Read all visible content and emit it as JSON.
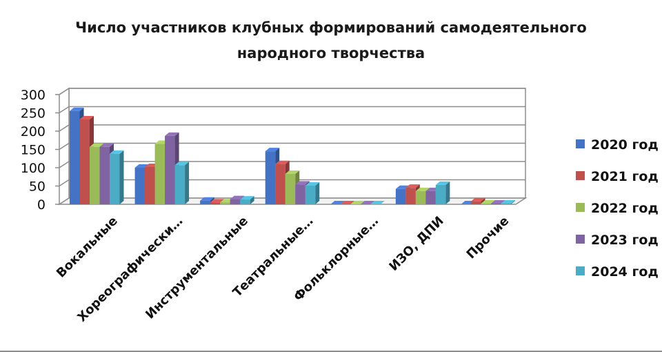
{
  "chart_data": {
    "type": "bar",
    "title_lines": [
      "Число участников клубных формирований самодеятельного",
      "народного творчества"
    ],
    "categories": [
      "Вокальные",
      "Хореографически…",
      "Инструментальные",
      "Театральные…",
      "Фольклорные…",
      "ИЗО, ДПИ",
      "Прочие"
    ],
    "series": [
      {
        "name": "2020 год",
        "color": "#4472c4",
        "values": [
          255,
          100,
          10,
          145,
          0,
          42,
          0
        ]
      },
      {
        "name": "2021 год",
        "color": "#c0504d",
        "values": [
          232,
          102,
          5,
          110,
          0,
          45,
          8
        ]
      },
      {
        "name": "2022 год",
        "color": "#9bbb59",
        "values": [
          157,
          165,
          5,
          83,
          0,
          36,
          2
        ]
      },
      {
        "name": "2023 год",
        "color": "#8064a2",
        "values": [
          157,
          187,
          14,
          54,
          0,
          36,
          2
        ]
      },
      {
        "name": "2024 год",
        "color": "#4bacc6",
        "values": [
          138,
          107,
          13,
          51,
          0,
          53,
          2
        ]
      }
    ],
    "yticks": [
      "300",
      "250",
      "200",
      "150",
      "100",
      "50",
      "0"
    ],
    "ylim": [
      0,
      300
    ],
    "grid": true,
    "legend": "right",
    "xlabel": "",
    "ylabel": ""
  }
}
